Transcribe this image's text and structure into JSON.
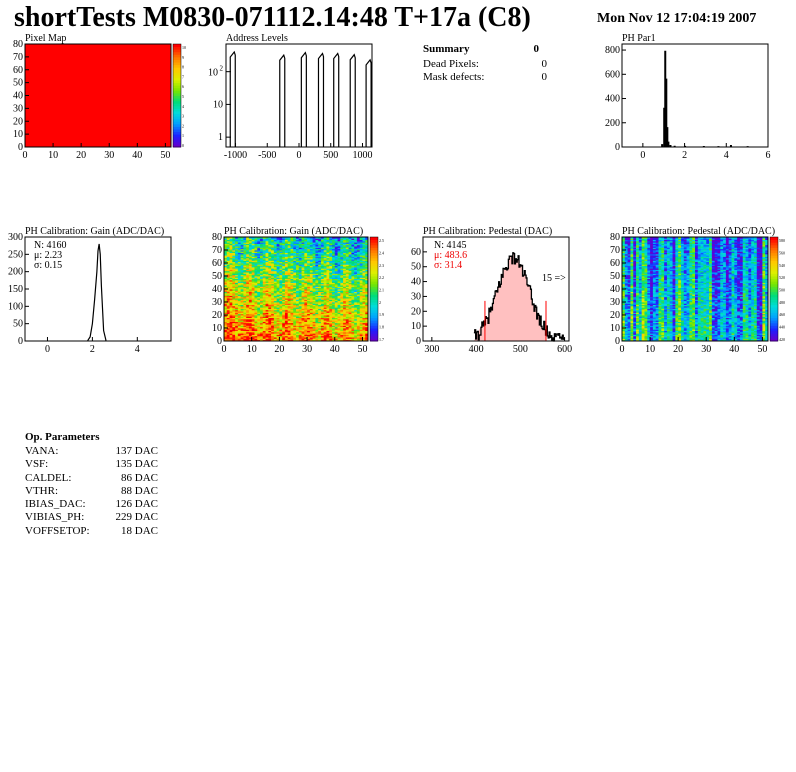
{
  "header": {
    "title": "shortTests M0830-071112.14:48 T+17a (C8)",
    "date": "Mon Nov 12 17:04:19 2007"
  },
  "summary": {
    "title": "Summary",
    "total": "0",
    "rows": [
      {
        "label": "Dead Pixels:",
        "value": "0"
      },
      {
        "label": "Mask defects:",
        "value": "0"
      }
    ]
  },
  "op_parameters": {
    "title": "Op. Parameters",
    "rows": [
      {
        "label": "VANA:",
        "value": "137 DAC"
      },
      {
        "label": "VSF:",
        "value": "135 DAC"
      },
      {
        "label": "CALDEL:",
        "value": "86 DAC"
      },
      {
        "label": "VTHR:",
        "value": "88 DAC"
      },
      {
        "label": "IBIAS_DAC:",
        "value": "126 DAC"
      },
      {
        "label": "VIBIAS_PH:",
        "value": "229 DAC"
      },
      {
        "label": "VOFFSETOP:",
        "value": "18 DAC"
      }
    ]
  },
  "colors": {
    "red": "#ff0000",
    "stat_red": "#ee0000",
    "pedestal_fill": "#ffc0c0"
  },
  "chart_data": [
    {
      "id": "pixel_map",
      "type": "heatmap",
      "title": "Pixel Map",
      "xlim": [
        0,
        52
      ],
      "ylim": [
        0,
        80
      ],
      "xticks": [
        "0",
        "10",
        "20",
        "30",
        "40",
        "50"
      ],
      "yticks": [
        "0",
        "10",
        "20",
        "30",
        "40",
        "50",
        "60",
        "70",
        "80"
      ],
      "zticks": [
        "0",
        "1",
        "2",
        "3",
        "4",
        "5",
        "6",
        "7",
        "8",
        "9",
        "10"
      ],
      "uniform_value": 10
    },
    {
      "id": "address_levels",
      "type": "bar",
      "title": "Address Levels",
      "xlim": [
        -1150,
        1150
      ],
      "ylog": true,
      "ylim": [
        0.5,
        700
      ],
      "xticks": [
        "-1000",
        "-500",
        "0",
        "500",
        "1000"
      ],
      "yticks": [
        "1",
        "10",
        "10^2"
      ],
      "peaks": [
        {
          "x": -1020,
          "y": 400
        },
        {
          "x": -240,
          "y": 320
        },
        {
          "x": 100,
          "y": 380
        },
        {
          "x": 370,
          "y": 360
        },
        {
          "x": 610,
          "y": 360
        },
        {
          "x": 870,
          "y": 330
        },
        {
          "x": 1120,
          "y": 230
        }
      ]
    },
    {
      "id": "ph_par1",
      "type": "bar",
      "title": "PH Par1",
      "xlim": [
        -1,
        6
      ],
      "ylim": [
        0,
        850
      ],
      "xticks": [
        "0",
        "2",
        "4",
        "6"
      ],
      "yticks": [
        "0",
        "200",
        "400",
        "600",
        "800"
      ],
      "x": [
        0.9,
        1.0,
        1.05,
        1.1,
        1.15,
        1.2,
        1.3,
        1.5,
        2.0,
        2.9,
        3.6,
        4.2,
        5.0
      ],
      "values": [
        20,
        320,
        790,
        560,
        160,
        40,
        12,
        6,
        5,
        4,
        3,
        12,
        3
      ]
    },
    {
      "id": "gain_1d",
      "type": "bar",
      "title": "PH Calibration: Gain (ADC/DAC)",
      "xlim": [
        -1,
        5.5
      ],
      "ylim": [
        0,
        300
      ],
      "xticks": [
        "0",
        "2",
        "4"
      ],
      "yticks": [
        "0",
        "50",
        "100",
        "150",
        "200",
        "250",
        "300"
      ],
      "stats": {
        "n": "N: 4160",
        "mean": "μ: 2.23",
        "sigma": "σ: 0.15"
      },
      "x": [
        1.8,
        1.9,
        2.0,
        2.1,
        2.2,
        2.25,
        2.3,
        2.35,
        2.4,
        2.5,
        2.6
      ],
      "values": [
        2,
        12,
        50,
        120,
        200,
        260,
        280,
        250,
        160,
        30,
        3
      ]
    },
    {
      "id": "gain_map",
      "type": "heatmap",
      "title": "PH Calibration: Gain (ADC/DAC)",
      "xlim": [
        0,
        52
      ],
      "ylim": [
        0,
        80
      ],
      "xticks": [
        "0",
        "10",
        "20",
        "30",
        "40",
        "50"
      ],
      "yticks": [
        "0",
        "10",
        "20",
        "30",
        "40",
        "50",
        "60",
        "70",
        "80"
      ],
      "zticks": [
        "1.7",
        "1.8",
        "1.9",
        "2",
        "2.1",
        "2.2",
        "2.3",
        "2.4",
        "2.5"
      ],
      "zlim": [
        1.7,
        2.6
      ]
    },
    {
      "id": "pedestal_1d",
      "type": "bar",
      "title": "PH Calibration: Pedestal (DAC)",
      "xlim": [
        280,
        610
      ],
      "ylim": [
        0,
        70
      ],
      "xticks": [
        "300",
        "400",
        "500",
        "600"
      ],
      "yticks": [
        "0",
        "10",
        "20",
        "30",
        "40",
        "50",
        "60"
      ],
      "stats": {
        "n": "N: 4145",
        "mean": "μ: 483.6",
        "sigma": "σ: 31.4"
      },
      "cut_lines": [
        420,
        558
      ],
      "overflow_label": "15 =>",
      "mean": 483.6,
      "sigma": 31.4,
      "peak": 56
    },
    {
      "id": "pedestal_map",
      "type": "heatmap",
      "title": "PH Calibration: Pedestal (ADC/DAC)",
      "xlim": [
        0,
        52
      ],
      "ylim": [
        0,
        80
      ],
      "xticks": [
        "0",
        "10",
        "20",
        "30",
        "40",
        "50"
      ],
      "yticks": [
        "0",
        "10",
        "20",
        "30",
        "40",
        "50",
        "60",
        "70",
        "80"
      ],
      "zticks": [
        "420",
        "440",
        "460",
        "480",
        "500",
        "520",
        "540",
        "560",
        "580"
      ],
      "zlim": [
        420,
        590
      ]
    }
  ]
}
